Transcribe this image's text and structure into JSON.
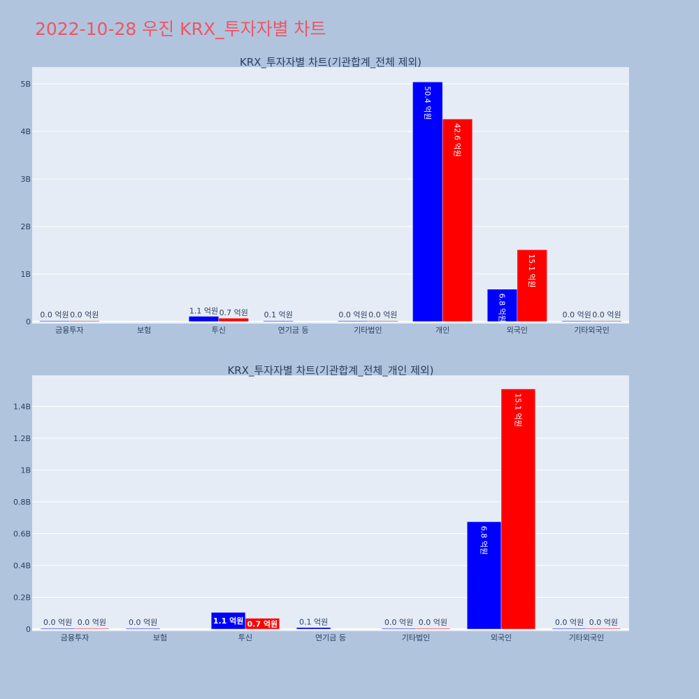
{
  "page_title": "2022-10-28 우진 KRX_투자자별 차트",
  "colors": {
    "buy": "#0000ff",
    "sell": "#ff0000",
    "plot_bg": "#e5ecf6",
    "page_bg": "#b0c4de",
    "title": "#ef5561"
  },
  "chart_data": [
    {
      "type": "bar",
      "title": "KRX_투자자별 차트(기관합계_전체 제외)",
      "categories": [
        "금융투자",
        "보험",
        "투신",
        "연기금 등",
        "기타법인",
        "개인",
        "외국인",
        "기타외국인"
      ],
      "series": [
        {
          "values": [
            0.0,
            null,
            0.11,
            0.01,
            0.0,
            5.04,
            0.68,
            0.0
          ]
        },
        {
          "values": [
            0.0,
            null,
            0.07,
            null,
            0.0,
            4.26,
            1.51,
            0.0
          ]
        }
      ],
      "labels": [
        [
          "0.0 억원",
          null,
          "1.1 억원",
          "0.1 억원",
          "0.0 억원",
          "50.4 억원",
          "6.8 억원",
          "0.0 억원"
        ],
        [
          "0.0 억원",
          null,
          "0.7 억원",
          null,
          "0.0 억원",
          "42.6 억원",
          "15.1 억원",
          "0.0 억원"
        ]
      ],
      "yticks": [
        0,
        1,
        2,
        3,
        4,
        5
      ],
      "ytick_labels": [
        "0",
        "1B",
        "2B",
        "3B",
        "4B",
        "5B"
      ],
      "ylim": [
        0,
        5.35
      ],
      "unit": "B",
      "grid": true
    },
    {
      "type": "bar",
      "title": "KRX_투자자별 차트(기관합계_전체_개인 제외)",
      "categories": [
        "금융투자",
        "보험",
        "투신",
        "연기금 등",
        "기타법인",
        "외국인",
        "기타외국인"
      ],
      "series": [
        {
          "values": [
            0.0,
            0.0,
            0.105,
            0.01,
            0.0,
            0.675,
            0.0
          ]
        },
        {
          "values": [
            0.0,
            null,
            0.068,
            null,
            0.0,
            1.51,
            0.0
          ]
        }
      ],
      "labels": [
        [
          "0.0 억원",
          "0.0 억원",
          "1.1 억원",
          "0.1 억원",
          "0.0 억원",
          "6.8 억원",
          "0.0 억원"
        ],
        [
          "0.0 억원",
          null,
          "0.7 억원",
          null,
          "0.0 억원",
          "15.1 억원",
          "0.0 억원"
        ]
      ],
      "yticks": [
        0,
        0.2,
        0.4,
        0.6,
        0.8,
        1.0,
        1.2,
        1.4
      ],
      "ytick_labels": [
        "0",
        "0.2B",
        "0.4B",
        "0.6B",
        "0.8B",
        "1B",
        "1.2B",
        "1.4B"
      ],
      "ylim": [
        0,
        1.6
      ],
      "unit": "B",
      "grid": true
    }
  ]
}
